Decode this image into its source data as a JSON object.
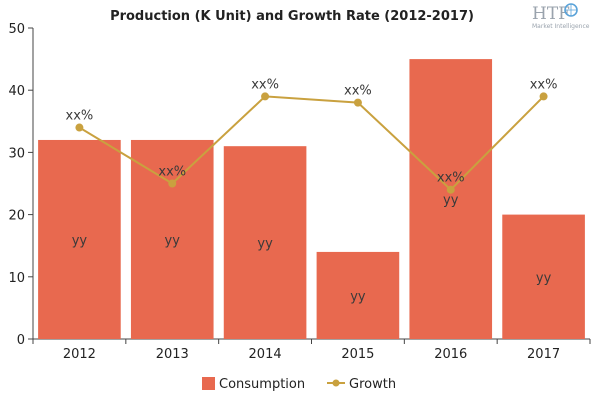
{
  "chart_data": {
    "type": "bar",
    "title": "Production (K Unit) and Growth Rate (2012-2017)",
    "categories": [
      "2012",
      "2013",
      "2014",
      "2015",
      "2016",
      "2017"
    ],
    "ylim": [
      0,
      50
    ],
    "yticks": [
      "0",
      "10",
      "20",
      "30",
      "40",
      "50"
    ],
    "grid": false,
    "legend_position": "bottom",
    "series": [
      {
        "name": "Consumption",
        "type": "bar",
        "color": "#E8694F",
        "values": [
          32,
          32,
          31,
          14,
          45,
          20
        ],
        "labels": [
          "yy",
          "yy",
          "yy",
          "yy",
          "yy",
          "yy"
        ]
      },
      {
        "name": "Growth",
        "type": "line",
        "color": "#C9A13F",
        "values": [
          34,
          25,
          39,
          38,
          24,
          39
        ],
        "labels": [
          "xx%",
          "xx%",
          "xx%",
          "xx%",
          "xx%",
          "xx%"
        ]
      }
    ]
  },
  "logo": {
    "main": "HTF",
    "sub": "Market Intelligence"
  }
}
